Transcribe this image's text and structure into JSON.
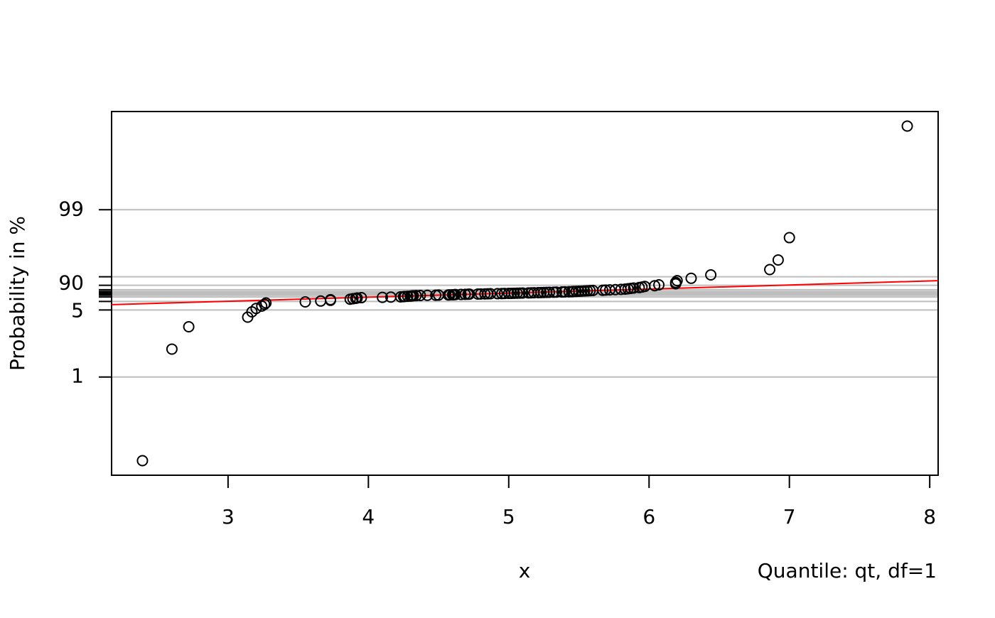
{
  "chart_data": {
    "type": "scatter",
    "xlabel": "x",
    "ylabel": "Probability in %",
    "annotation": "Quantile: qt, df=1",
    "yscale": "t-quantile-df1",
    "xlim": [
      2.17,
      8.06
    ],
    "xticks": [
      3,
      4,
      5,
      6,
      7,
      8
    ],
    "ylim": [
      0.46,
      99.54
    ],
    "yticks": [
      {
        "value": 1,
        "label": "1"
      },
      {
        "value": 5,
        "label": "5"
      },
      {
        "value": 10,
        "label": null
      },
      {
        "value": 20,
        "label": null
      },
      {
        "value": 30,
        "label": null
      },
      {
        "value": 40,
        "label": null
      },
      {
        "value": 50,
        "label": null
      },
      {
        "value": 60,
        "label": null
      },
      {
        "value": 70,
        "label": null
      },
      {
        "value": 80,
        "label": null
      },
      {
        "value": 90,
        "label": "90"
      },
      {
        "value": 95,
        "label": null
      },
      {
        "value": 99,
        "label": "99"
      }
    ],
    "grid": true,
    "grid_color": "#bebebe",
    "series": [
      {
        "color": "#000000",
        "x": [
          2.39,
          2.6,
          2.72,
          3.14,
          3.17,
          3.2,
          3.24,
          3.26,
          3.27,
          3.55,
          3.66,
          3.73,
          3.73,
          3.87,
          3.89,
          3.91,
          3.92,
          3.95,
          4.1,
          4.16,
          4.23,
          4.25,
          4.26,
          4.28,
          4.3,
          4.31,
          4.32,
          4.34,
          4.37,
          4.42,
          4.48,
          4.5,
          4.57,
          4.58,
          4.6,
          4.61,
          4.62,
          4.66,
          4.69,
          4.71,
          4.72,
          4.78,
          4.8,
          4.83,
          4.85,
          4.87,
          4.92,
          4.95,
          4.97,
          5.0,
          5.02,
          5.04,
          5.06,
          5.08,
          5.1,
          5.14,
          5.16,
          5.18,
          5.21,
          5.23,
          5.25,
          5.27,
          5.29,
          5.32,
          5.34,
          5.38,
          5.4,
          5.43,
          5.45,
          5.46,
          5.48,
          5.5,
          5.52,
          5.54,
          5.56,
          5.58,
          5.6,
          5.67,
          5.69,
          5.72,
          5.76,
          5.8,
          5.83,
          5.85,
          5.87,
          5.89,
          5.93,
          5.95,
          5.97,
          6.04,
          6.07,
          6.19,
          6.19,
          6.2,
          6.3,
          6.44,
          6.86,
          6.92,
          7.0,
          7.84
        ],
        "values": [
          0.5,
          1.5,
          2.5,
          3.5,
          4.5,
          5.5,
          6.5,
          7.5,
          8.5,
          9.5,
          10.5,
          11.5,
          12.5,
          13.5,
          14.5,
          15.5,
          16.5,
          17.5,
          18.5,
          19.5,
          20.5,
          21.5,
          22.5,
          23.5,
          24.5,
          25.5,
          26.5,
          27.5,
          28.5,
          29.5,
          30.5,
          31.5,
          32.5,
          33.5,
          34.5,
          35.5,
          36.5,
          37.5,
          38.5,
          39.5,
          40.5,
          41.5,
          42.5,
          43.5,
          44.5,
          45.5,
          46.5,
          47.5,
          48.5,
          49.5,
          50.5,
          51.5,
          52.5,
          53.5,
          54.5,
          55.5,
          56.5,
          57.5,
          58.5,
          59.5,
          60.5,
          61.5,
          62.5,
          63.5,
          64.5,
          65.5,
          66.5,
          67.5,
          68.5,
          69.5,
          70.5,
          71.5,
          72.5,
          73.5,
          74.5,
          75.5,
          76.5,
          77.5,
          78.5,
          79.5,
          80.5,
          81.5,
          82.5,
          83.5,
          84.5,
          85.5,
          86.5,
          87.5,
          88.5,
          89.5,
          90.5,
          91.5,
          92.5,
          93.5,
          94.5,
          95.5,
          96.5,
          97.5,
          98.5,
          99.5
        ]
      }
    ],
    "fit_line": {
      "color": "#ff0000",
      "x": [
        2.17,
        8.06
      ],
      "values": [
        7.3,
        93.5
      ]
    }
  }
}
